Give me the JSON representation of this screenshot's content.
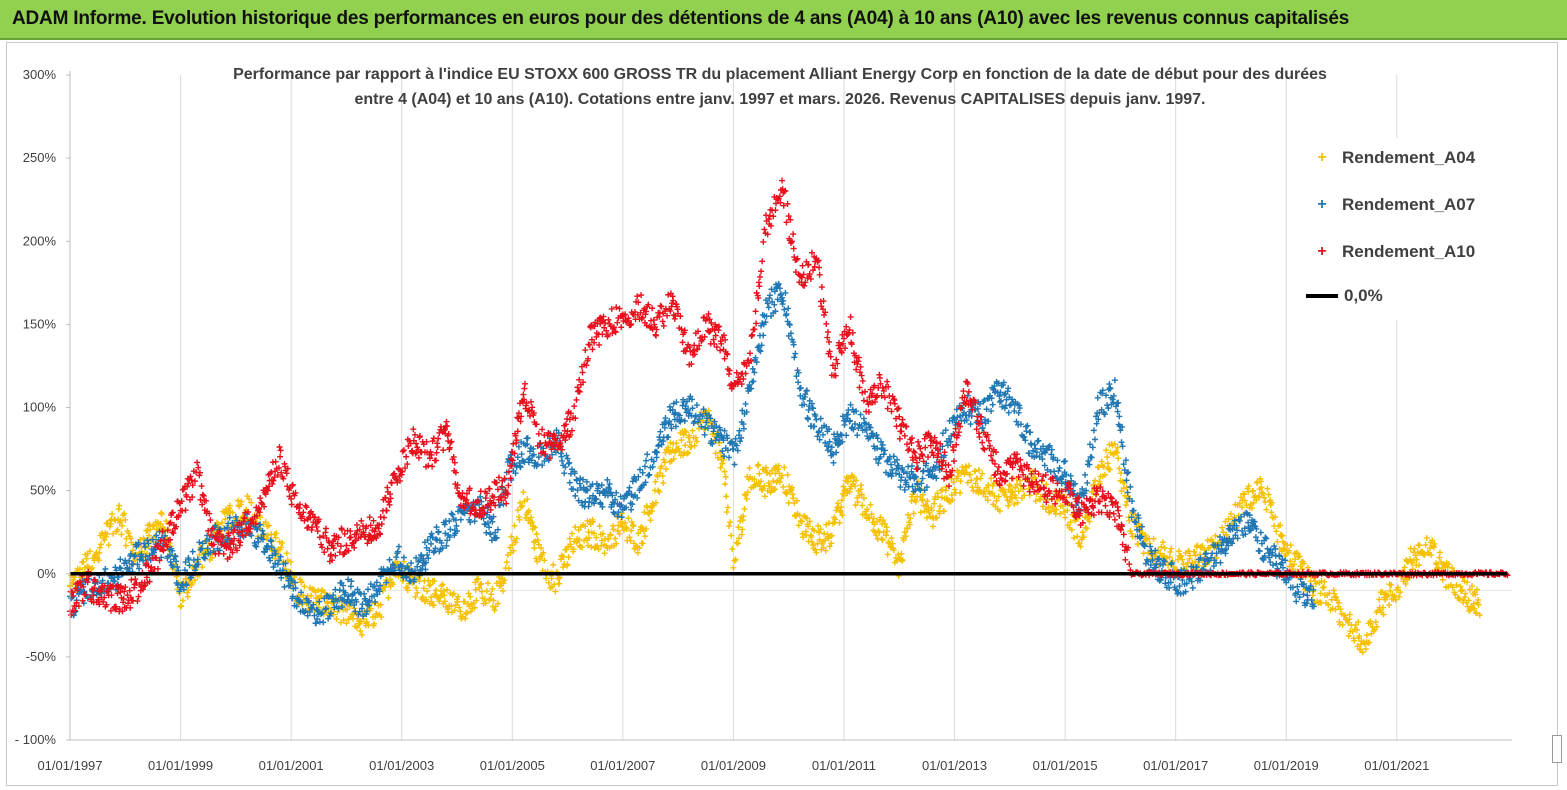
{
  "banner": {
    "title": "ADAM Informe. Evolution historique des performances en euros pour des détentions de 4 ans (A04) à 10 ans (A10) avec les revenus connus capitalisés"
  },
  "chart_data": {
    "type": "scatter",
    "title_line1": "Performance par rapport à l'indice EU STOXX 600 GROSS TR  du placement Alliant Energy Corp en fonction de la date de début pour des durées",
    "title_line2": "entre 4 (A04) et 10 ans (A10). Cotations entre janv. 1997 et mars. 2026. Revenus CAPITALISES depuis janv. 1997.",
    "xlabel": "",
    "ylabel": "",
    "x_range": [
      "1997-01-01",
      "2023-02-01"
    ],
    "x_ticks": [
      "01/01/1997",
      "01/01/1999",
      "01/01/2001",
      "01/01/2003",
      "01/01/2005",
      "01/01/2007",
      "01/01/2009",
      "01/01/2011",
      "01/01/2013",
      "01/01/2015",
      "01/01/2017",
      "01/01/2019",
      "01/01/2021"
    ],
    "ylim": [
      -100,
      300
    ],
    "y_ticks": [
      "- 100%",
      "-50%",
      "0%",
      "50%",
      "100%",
      "150%",
      "200%",
      "250%",
      "300%"
    ],
    "y_tick_values": [
      -100,
      -50,
      0,
      50,
      100,
      150,
      200,
      250,
      300
    ],
    "grid": "vertical",
    "legend_position": "top-right",
    "series": [
      {
        "name": "Rendement_A04",
        "color": "#f5c000",
        "x": [
          1997.0,
          1997.3,
          1997.6,
          1997.9,
          1998.2,
          1998.5,
          1998.7,
          1999.0,
          1999.3,
          1999.6,
          1999.9,
          2000.2,
          2000.5,
          2000.8,
          2001.1,
          2001.4,
          2001.7,
          2002.0,
          2002.3,
          2002.6,
          2002.9,
          2003.2,
          2003.5,
          2003.8,
          2004.1,
          2004.4,
          2004.7,
          2004.9,
          2005.2,
          2005.5,
          2005.8,
          2006.1,
          2006.4,
          2006.7,
          2007.0,
          2007.3,
          2007.6,
          2007.9,
          2008.2,
          2008.5,
          2008.8,
          2009.0,
          2009.3,
          2009.6,
          2009.9,
          2010.2,
          2010.5,
          2010.8,
          2011.1,
          2011.4,
          2011.7,
          2012.0,
          2012.3,
          2012.6,
          2012.9,
          2013.2,
          2013.5,
          2013.8,
          2014.1,
          2014.4,
          2014.7,
          2015.0,
          2015.3,
          2015.6,
          2015.9,
          2016.2,
          2016.5,
          2016.8,
          2017.1,
          2017.4,
          2017.7,
          2018.0,
          2018.3,
          2018.6,
          2018.9,
          2019.2,
          2019.5,
          2019.8,
          2020.1,
          2020.4,
          2020.7,
          2021.0,
          2021.3,
          2021.6,
          2021.9,
          2022.2,
          2022.5
        ],
        "y": [
          -10,
          5,
          20,
          35,
          10,
          25,
          30,
          -15,
          5,
          20,
          35,
          40,
          25,
          15,
          -10,
          -15,
          -20,
          -25,
          -30,
          -20,
          5,
          -5,
          -10,
          -15,
          -20,
          -10,
          -15,
          5,
          45,
          10,
          -5,
          20,
          25,
          20,
          30,
          20,
          50,
          75,
          80,
          95,
          70,
          5,
          60,
          55,
          60,
          30,
          20,
          25,
          55,
          40,
          25,
          5,
          50,
          35,
          50,
          60,
          55,
          45,
          50,
          55,
          45,
          40,
          20,
          60,
          75,
          30,
          15,
          10,
          5,
          10,
          15,
          30,
          45,
          50,
          20,
          5,
          -10,
          -15,
          -30,
          -40,
          -20,
          -10,
          10,
          15,
          0,
          -10,
          -20
        ]
      },
      {
        "name": "Rendement_A07",
        "color": "#1f77b4",
        "x": [
          1997.0,
          1997.3,
          1997.6,
          1997.9,
          1998.2,
          1998.5,
          1998.7,
          1999.0,
          1999.3,
          1999.6,
          1999.9,
          2000.2,
          2000.5,
          2000.8,
          2001.1,
          2001.4,
          2001.7,
          2002.0,
          2002.3,
          2002.6,
          2002.9,
          2003.2,
          2003.5,
          2003.8,
          2004.1,
          2004.4,
          2004.7,
          2004.9,
          2005.2,
          2005.5,
          2005.8,
          2006.1,
          2006.4,
          2006.7,
          2007.0,
          2007.3,
          2007.6,
          2007.9,
          2008.2,
          2008.5,
          2008.8,
          2009.0,
          2009.3,
          2009.6,
          2009.9,
          2010.2,
          2010.5,
          2010.8,
          2011.1,
          2011.4,
          2011.7,
          2012.0,
          2012.3,
          2012.6,
          2012.9,
          2013.2,
          2013.5,
          2013.8,
          2014.1,
          2014.4,
          2014.7,
          2015.0,
          2015.3,
          2015.6,
          2015.9,
          2016.2,
          2016.5,
          2016.8,
          2017.1,
          2017.4,
          2017.7,
          2018.0,
          2018.3,
          2018.6,
          2018.9,
          2019.2,
          2019.5
        ],
        "y": [
          -20,
          -10,
          -5,
          0,
          10,
          15,
          20,
          -5,
          10,
          20,
          25,
          30,
          20,
          5,
          -15,
          -25,
          -20,
          -10,
          -20,
          -5,
          10,
          0,
          15,
          25,
          35,
          40,
          25,
          60,
          75,
          70,
          80,
          55,
          45,
          50,
          40,
          55,
          75,
          95,
          100,
          90,
          80,
          70,
          110,
          160,
          170,
          110,
          90,
          75,
          95,
          85,
          70,
          60,
          55,
          60,
          85,
          100,
          95,
          110,
          100,
          75,
          70,
          60,
          40,
          100,
          110,
          40,
          10,
          0,
          -5,
          0,
          10,
          25,
          30,
          15,
          5,
          -10,
          -15
        ]
      },
      {
        "name": "Rendement_A10",
        "color": "#e8101c",
        "x": [
          1997.0,
          1997.3,
          1997.6,
          1997.9,
          1998.2,
          1998.5,
          1998.7,
          1999.0,
          1999.3,
          1999.6,
          1999.9,
          2000.2,
          2000.5,
          2000.8,
          2001.1,
          2001.4,
          2001.7,
          2002.0,
          2002.3,
          2002.6,
          2002.9,
          2003.2,
          2003.5,
          2003.8,
          2004.1,
          2004.4,
          2004.7,
          2004.9,
          2005.2,
          2005.5,
          2005.8,
          2006.1,
          2006.4,
          2006.7,
          2007.0,
          2007.3,
          2007.6,
          2007.9,
          2008.2,
          2008.5,
          2008.8,
          2009.0,
          2009.3,
          2009.6,
          2009.9,
          2010.2,
          2010.5,
          2010.8,
          2011.1,
          2011.4,
          2011.7,
          2012.0,
          2012.3,
          2012.6,
          2012.9,
          2013.2,
          2013.5,
          2013.8,
          2014.1,
          2014.4,
          2014.7,
          2015.0,
          2015.3,
          2015.6,
          2015.9,
          2016.2,
          2016.5,
          2016.8,
          2017.1,
          2017.4,
          2017.7,
          2018.0,
          2018.3,
          2018.6,
          2018.9,
          2019.2,
          2019.5,
          2019.8,
          2020.1,
          2020.4,
          2020.7,
          2021.0,
          2021.3,
          2021.6,
          2021.9,
          2022.2,
          2022.5,
          2022.8,
          2023.0
        ],
        "y": [
          -20,
          -5,
          -15,
          -15,
          -10,
          5,
          20,
          40,
          60,
          20,
          15,
          30,
          45,
          70,
          40,
          30,
          15,
          20,
          25,
          30,
          60,
          80,
          70,
          85,
          45,
          40,
          50,
          50,
          110,
          80,
          75,
          95,
          140,
          150,
          155,
          160,
          150,
          165,
          130,
          150,
          140,
          110,
          130,
          210,
          230,
          175,
          190,
          120,
          150,
          100,
          115,
          90,
          70,
          80,
          60,
          110,
          85,
          60,
          65,
          55,
          50,
          50,
          35,
          45,
          40,
          0,
          0,
          0,
          0,
          0,
          0,
          0,
          0,
          0,
          0,
          0,
          0,
          0,
          0,
          0,
          0,
          0,
          0,
          0,
          0,
          0,
          0,
          0,
          0
        ]
      },
      {
        "name": "0,0%",
        "color": "#000000",
        "type": "line",
        "x": [
          1997.0,
          2023.0
        ],
        "y": [
          0,
          0
        ]
      }
    ]
  }
}
